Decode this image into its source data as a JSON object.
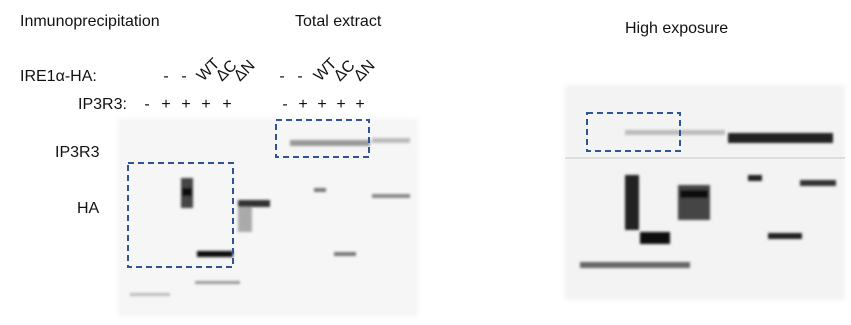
{
  "headers": {
    "immunoprecipitation": "Inmunoprecipitation",
    "total_extract": "Total extract",
    "high_exposure": "High exposure"
  },
  "row_labels": {
    "ire1": "IRE1α-HA:",
    "ip3r3": "IP3R3:"
  },
  "band_labels": {
    "ip3r3": "IP3R3",
    "ha": "HA"
  },
  "lanes": {
    "immunoprecipitation": {
      "ire1": [
        "-",
        "-",
        "WT",
        "ΔC",
        "ΔN"
      ],
      "ip3r3": [
        "-",
        "+",
        "+",
        "+",
        "+"
      ]
    },
    "total_extract": {
      "ire1": [
        "-",
        "-",
        "WT",
        "ΔC",
        "ΔN"
      ],
      "ip3r3": [
        "-",
        "+",
        "+",
        "+",
        "+"
      ]
    }
  }
}
